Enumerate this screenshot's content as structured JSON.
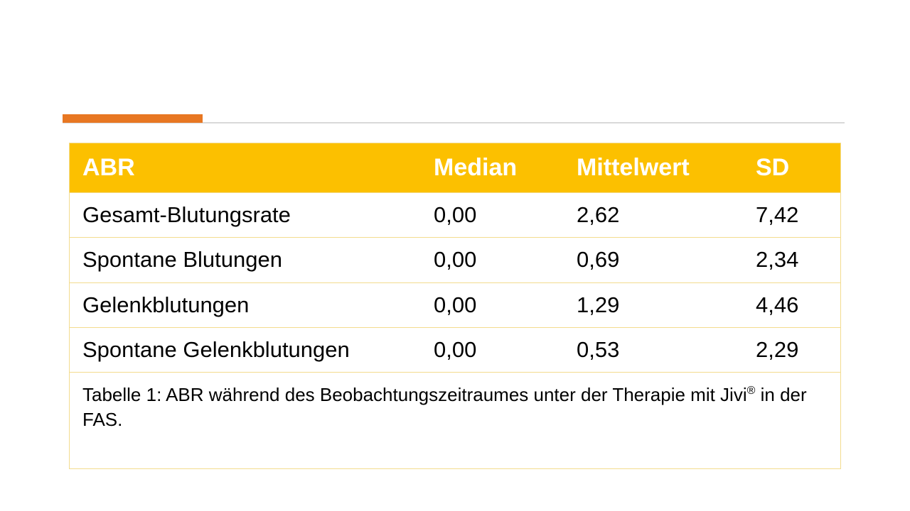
{
  "table": {
    "headers": [
      "ABR",
      "Median",
      "Mittelwert",
      "SD"
    ],
    "rows": [
      [
        "Gesamt-Blutungsrate",
        "0,00",
        "2,62",
        "7,42"
      ],
      [
        "Spontane Blutungen",
        "0,00",
        "0,69",
        "2,34"
      ],
      [
        "Gelenkblutungen",
        "0,00",
        "1,29",
        "4,46"
      ],
      [
        "Spontane Gelenkblutungen",
        "0,00",
        "0,53",
        "2,29"
      ]
    ],
    "caption": {
      "before": "Tabelle 1: ABR während des Beobachtungszeitraumes unter der Therapie mit Jivi",
      "sup": "®",
      "after": " in der FAS."
    }
  },
  "colors": {
    "header_bg": "#fcc000",
    "accent_rule": "#e87722",
    "grid_line": "#f3dc8e"
  }
}
